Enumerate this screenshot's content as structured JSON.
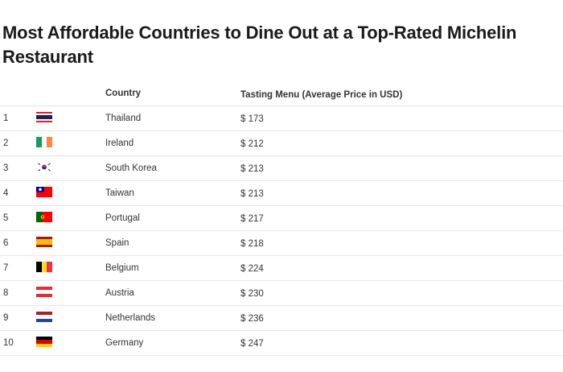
{
  "title": "Most Affordable Countries to Dine Out at a Top-Rated Michelin Restaurant",
  "columns": {
    "rank": "",
    "flag": "",
    "country": "Country",
    "price": "Tasting Menu (Average Price in USD)"
  },
  "rows": [
    {
      "rank": "1",
      "country": "Thailand",
      "price": "$ 173",
      "flag_icon": "thailand-flag-icon"
    },
    {
      "rank": "2",
      "country": "Ireland",
      "price": "$ 212",
      "flag_icon": "ireland-flag-icon"
    },
    {
      "rank": "3",
      "country": "South Korea",
      "price": "$ 213",
      "flag_icon": "south-korea-flag-icon"
    },
    {
      "rank": "4",
      "country": "Taiwan",
      "price": "$ 213",
      "flag_icon": "taiwan-flag-icon"
    },
    {
      "rank": "5",
      "country": "Portugal",
      "price": "$ 217",
      "flag_icon": "portugal-flag-icon"
    },
    {
      "rank": "6",
      "country": "Spain",
      "price": "$ 218",
      "flag_icon": "spain-flag-icon"
    },
    {
      "rank": "7",
      "country": "Belgium",
      "price": "$ 224",
      "flag_icon": "belgium-flag-icon"
    },
    {
      "rank": "8",
      "country": "Austria",
      "price": "$ 230",
      "flag_icon": "austria-flag-icon"
    },
    {
      "rank": "9",
      "country": "Netherlands",
      "price": "$ 236",
      "flag_icon": "netherlands-flag-icon"
    },
    {
      "rank": "10",
      "country": "Germany",
      "price": "$ 247",
      "flag_icon": "germany-flag-icon"
    }
  ]
}
